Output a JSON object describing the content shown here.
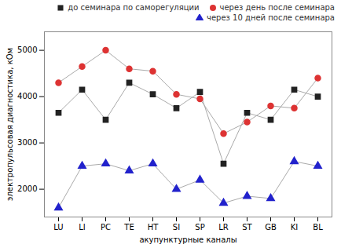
{
  "chart_data": {
    "type": "line",
    "xlabel": "акупунктурные каналы",
    "ylabel": "электропульсовая диагностика, кОм",
    "categories": [
      "LU",
      "LI",
      "PC",
      "TE",
      "HT",
      "SI",
      "SP",
      "LR",
      "ST",
      "GB",
      "KI",
      "BL"
    ],
    "series": [
      {
        "name": "до семинара по саморегуляции",
        "color": "#222222",
        "marker": "square",
        "line_style": "solid",
        "values": [
          3650,
          4150,
          3500,
          4300,
          4050,
          3750,
          4100,
          2550,
          3650,
          3500,
          4150,
          4000
        ]
      },
      {
        "name": "через день после семинара",
        "color": "#dd3333",
        "marker": "circle",
        "line_style": "solid",
        "values": [
          4300,
          4650,
          5000,
          4600,
          4550,
          4050,
          3950,
          3200,
          3450,
          3800,
          3750,
          4400
        ]
      },
      {
        "name": "через 10 дней после семинара",
        "color": "#2222cc",
        "marker": "triangle",
        "line_style": "solid",
        "values": [
          1600,
          2500,
          2550,
          2400,
          2550,
          2000,
          2200,
          1700,
          1850,
          1800,
          2600,
          2500
        ]
      }
    ],
    "ylim": [
      1400,
      5400
    ],
    "yticks": [
      2000,
      3000,
      4000,
      5000
    ],
    "grid": false,
    "legend": "upper right"
  }
}
